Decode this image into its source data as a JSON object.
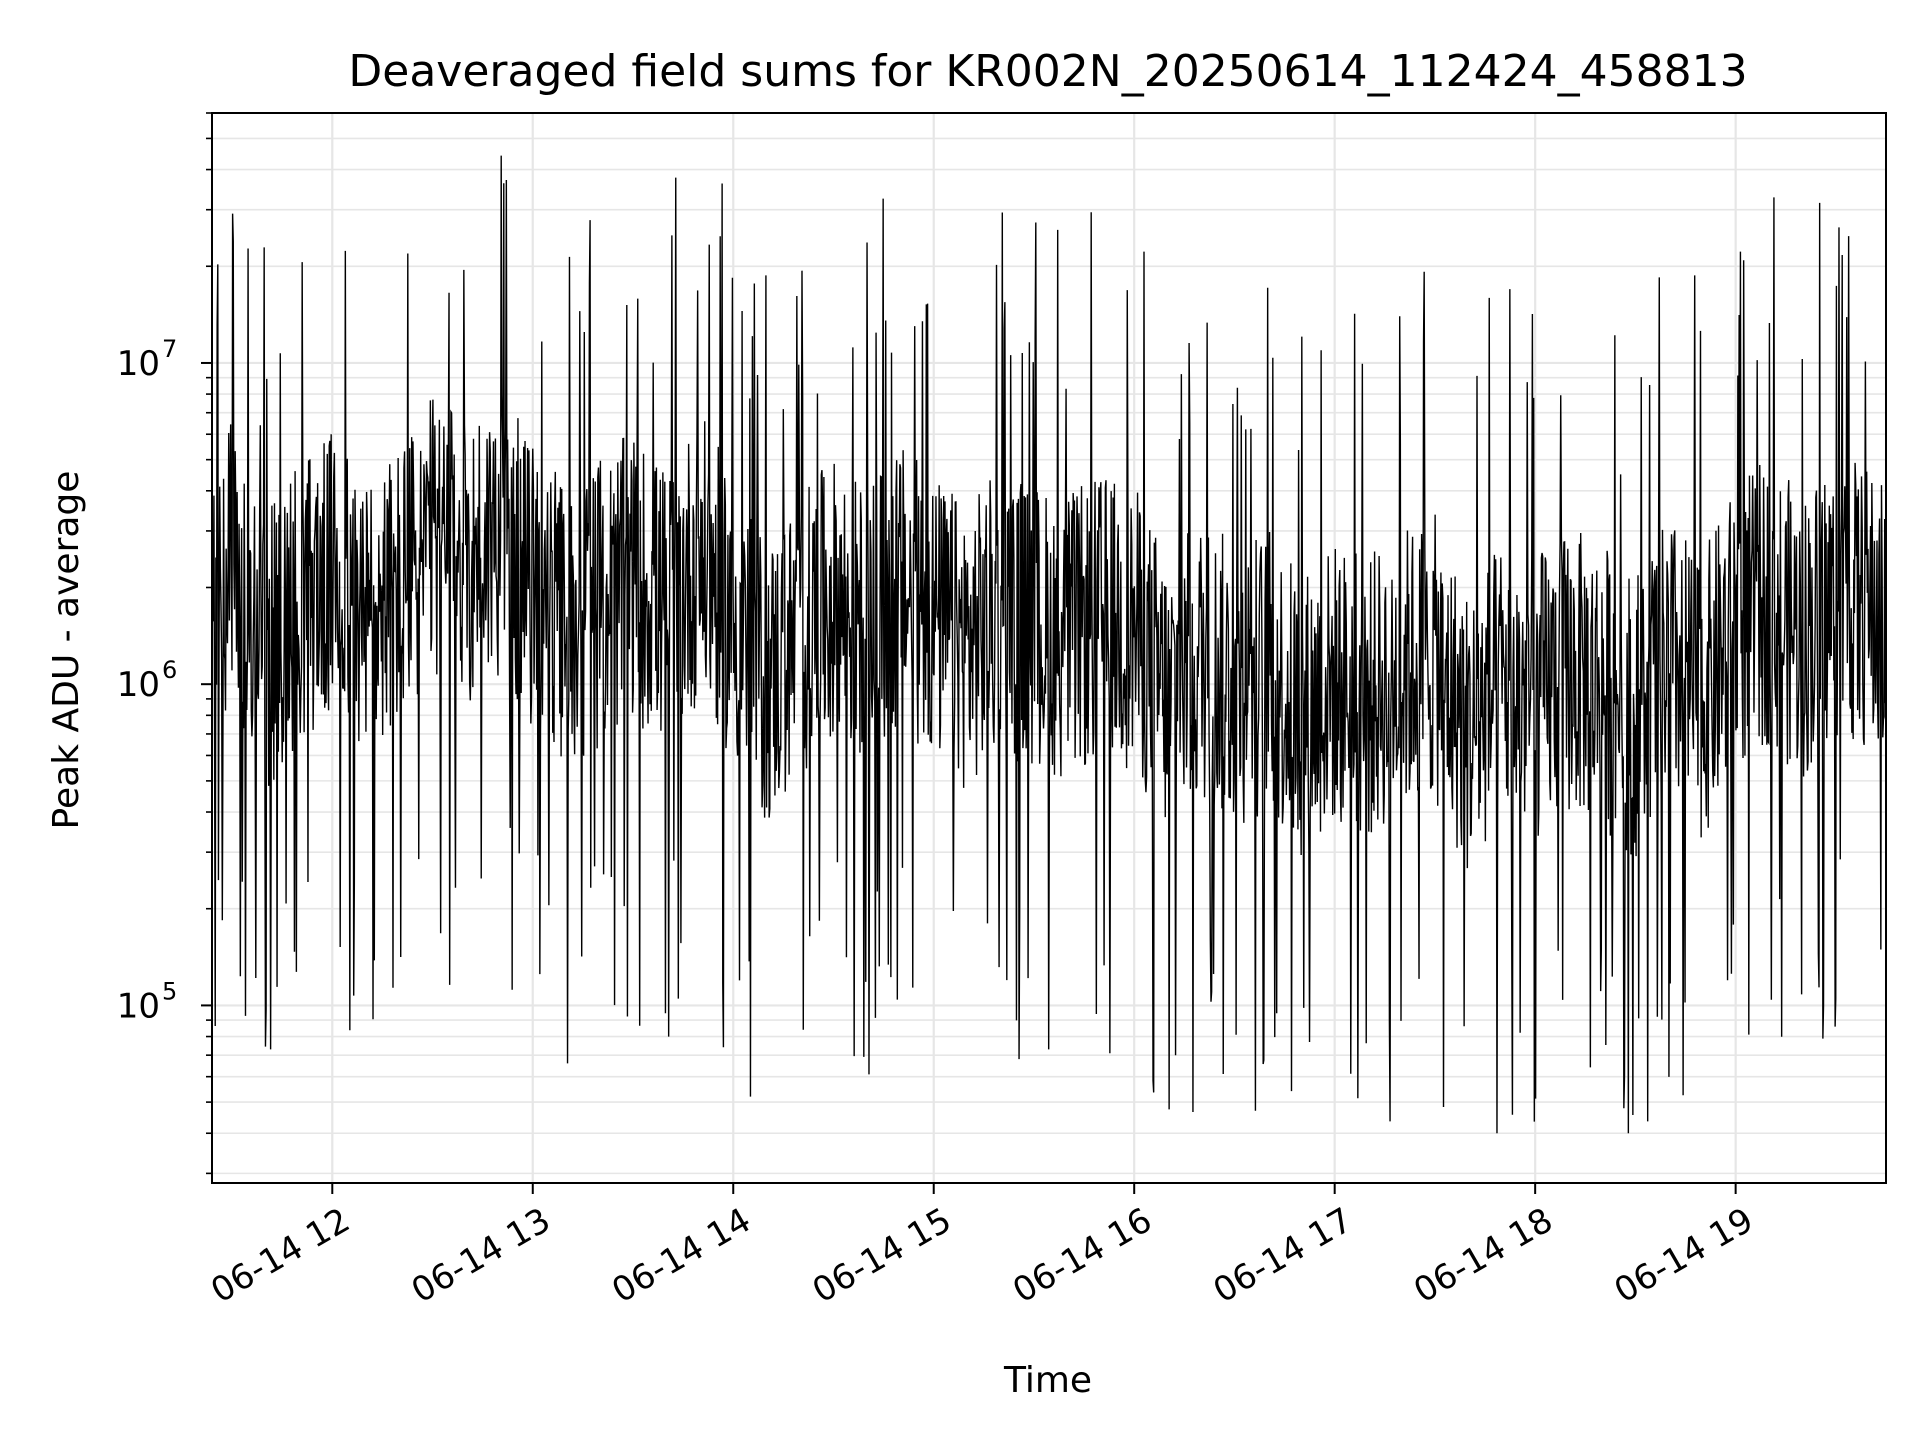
{
  "chart_data": {
    "type": "line",
    "title": "Deaveraged field sums for KR002N_20250614_112424_458813",
    "xlabel": "Time",
    "ylabel": "Peak ADU - average",
    "y_scale": "log",
    "ylim": [
      28000,
      60000000
    ],
    "xlim": [
      "2025-06-14 11:24",
      "2025-06-14 19:45"
    ],
    "grid": true,
    "line_color": "#000000",
    "x_ticks": [
      {
        "t": "2025-06-14 12:00",
        "label": "06-14 12"
      },
      {
        "t": "2025-06-14 13:00",
        "label": "06-14 13"
      },
      {
        "t": "2025-06-14 14:00",
        "label": "06-14 14"
      },
      {
        "t": "2025-06-14 15:00",
        "label": "06-14 15"
      },
      {
        "t": "2025-06-14 16:00",
        "label": "06-14 16"
      },
      {
        "t": "2025-06-14 17:00",
        "label": "06-14 17"
      },
      {
        "t": "2025-06-14 18:00",
        "label": "06-14 18"
      },
      {
        "t": "2025-06-14 19:00",
        "label": "06-14 19"
      }
    ],
    "y_ticks": [
      {
        "value": 100000,
        "base": "10",
        "exp": "5"
      },
      {
        "value": 1000000,
        "base": "10",
        "exp": "6"
      },
      {
        "value": 10000000,
        "base": "10",
        "exp": "7"
      }
    ],
    "series": [
      {
        "x": [
          "2025-06-14 11:24",
          "2025-06-14 11:30",
          "2025-06-14 11:39",
          "2025-06-14 11:49",
          "2025-06-14 12:01",
          "2025-06-14 12:10",
          "2025-06-14 12:20",
          "2025-06-14 12:30",
          "2025-06-14 12:40",
          "2025-06-14 12:50",
          "2025-06-14 13:00",
          "2025-06-14 13:10",
          "2025-06-14 13:20",
          "2025-06-14 13:30",
          "2025-06-14 13:40",
          "2025-06-14 13:50",
          "2025-06-14 14:00",
          "2025-06-14 14:10",
          "2025-06-14 14:20",
          "2025-06-14 14:30",
          "2025-06-14 14:40",
          "2025-06-14 14:50",
          "2025-06-14 15:00",
          "2025-06-14 15:10",
          "2025-06-14 15:20",
          "2025-06-14 15:30",
          "2025-06-14 15:40",
          "2025-06-14 15:50",
          "2025-06-14 16:00",
          "2025-06-14 16:10",
          "2025-06-14 16:20",
          "2025-06-14 16:30",
          "2025-06-14 16:40",
          "2025-06-14 16:50",
          "2025-06-14 17:00",
          "2025-06-14 17:10",
          "2025-06-14 17:20",
          "2025-06-14 17:30",
          "2025-06-14 17:40",
          "2025-06-14 17:50",
          "2025-06-14 18:00",
          "2025-06-14 18:10",
          "2025-06-14 18:20",
          "2025-06-14 18:30",
          "2025-06-14 18:40",
          "2025-06-14 18:50",
          "2025-06-14 19:00",
          "2025-06-14 19:10",
          "2025-06-14 19:20",
          "2025-06-14 19:30",
          "2025-06-14 19:40",
          "2025-06-14 19:45"
        ],
        "y": [
          1500000,
          2500000,
          1200000,
          1800000,
          2200000,
          1600000,
          2000000,
          2800000,
          2400000,
          3000000,
          2000000,
          1500000,
          1800000,
          2200000,
          1700000,
          2500000,
          1600000,
          1000000,
          1400000,
          1800000,
          1500000,
          2000000,
          1600000,
          1300000,
          1700000,
          1500000,
          1400000,
          1600000,
          1500000,
          900000,
          1200000,
          1000000,
          1100000,
          800000,
          1000000,
          900000,
          1100000,
          1200000,
          700000,
          1000000,
          900000,
          1100000,
          1000000,
          800000,
          1200000,
          900000,
          1500000,
          1800000,
          1400000,
          1900000,
          1700000,
          1500000
        ]
      }
    ]
  }
}
